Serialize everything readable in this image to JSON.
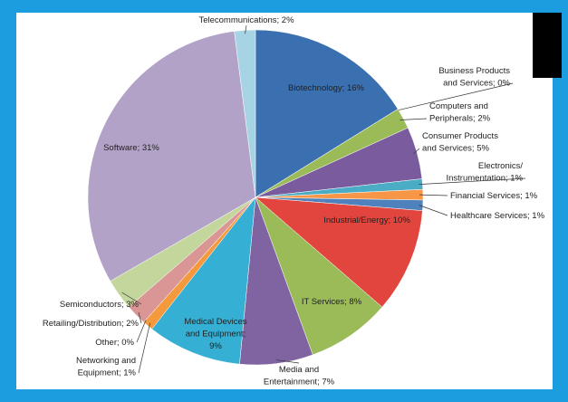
{
  "chart_data": {
    "type": "pie",
    "categories": [
      "Biotechnology; 16%",
      "Business Products\nand Services; 0%",
      "Computers and\nPeripherals; 2%",
      "Consumer Products\nand Services; 5%",
      "Electronics/\nInstrumentation; 1%",
      "Financial Services; 1%",
      "Healthcare Services; 1%",
      "Industrial/Energy; 10%",
      "IT Services; 8%",
      "Media and\nEntertainment; 7%",
      "Medical Devices\nand Equipment;\n9%",
      "Networking and\nEquipment; 1%",
      "Other; 0%",
      "Retailing/Distribution; 2%",
      "Semiconductors; 3%",
      "Software; 31%",
      "Telecommunications; 2%"
    ],
    "values": [
      16,
      0,
      2,
      5,
      1,
      1,
      1,
      10,
      8,
      7,
      9,
      1,
      0,
      2,
      3,
      31,
      2
    ],
    "colors": [
      "#3a6fb0",
      "#c0504d",
      "#9bbb59",
      "#7a5c9e",
      "#4bacc6",
      "#f79646",
      "#4f81bd",
      "#e2453d",
      "#9bbb59",
      "#8064a2",
      "#35afd3",
      "#f59a3c",
      "#4f81bd",
      "#d99694",
      "#c3d69b",
      "#b3a2c7",
      "#a6d4e4"
    ]
  }
}
